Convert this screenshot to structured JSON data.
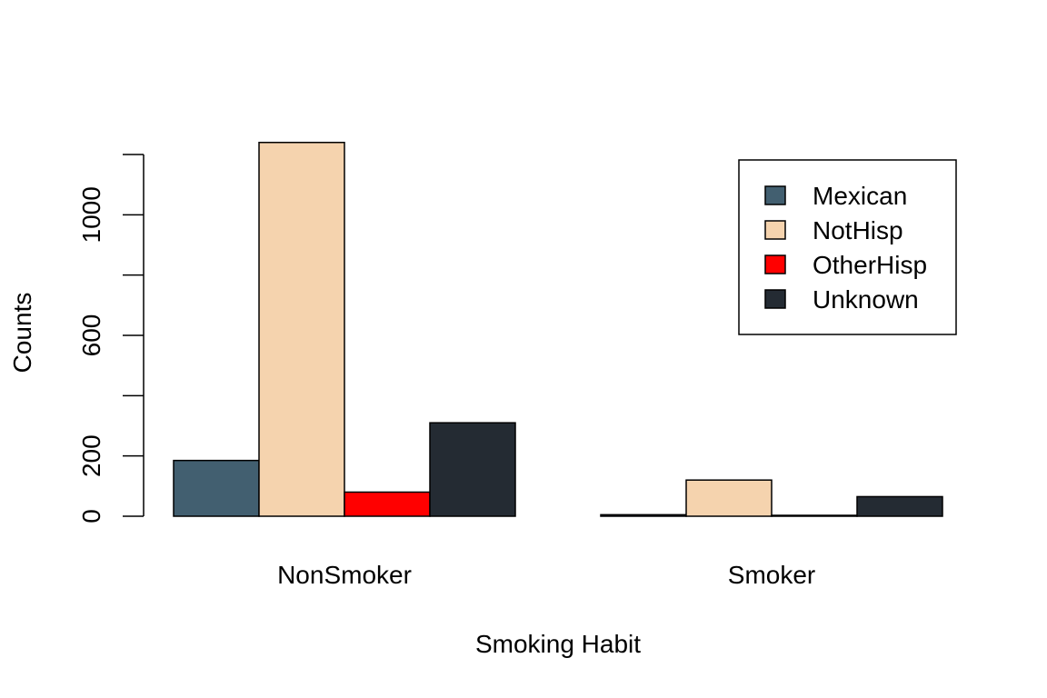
{
  "chart_data": {
    "type": "bar",
    "layout": "grouped",
    "xlabel": "Smoking Habit",
    "ylabel": "Counts",
    "categories": [
      "NonSmoker",
      "Smoker"
    ],
    "series": [
      {
        "name": "Mexican",
        "color": "#425f70",
        "values": [
          185,
          5
        ]
      },
      {
        "name": "NotHisp",
        "color": "#f5d3ae",
        "values": [
          1240,
          120
        ]
      },
      {
        "name": "OtherHisp",
        "color": "#ff0000",
        "values": [
          80,
          3
        ]
      },
      {
        "name": "Unknown",
        "color": "#242b33",
        "values": [
          310,
          65
        ]
      }
    ],
    "yticks": [
      0,
      200,
      600,
      1000
    ],
    "yminor_ticks": [
      400,
      800,
      1200
    ],
    "ylim": [
      0,
      1200
    ],
    "grid": false,
    "legend": {
      "position": "top-right",
      "boxed": true
    }
  }
}
